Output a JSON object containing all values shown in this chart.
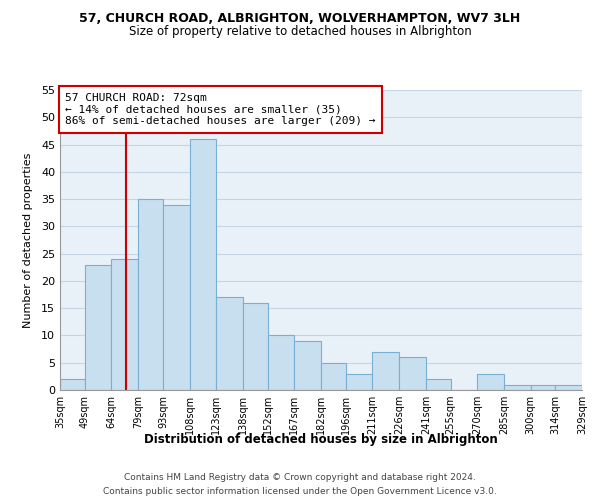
{
  "title": "57, CHURCH ROAD, ALBRIGHTON, WOLVERHAMPTON, WV7 3LH",
  "subtitle": "Size of property relative to detached houses in Albrighton",
  "xlabel": "Distribution of detached houses by size in Albrighton",
  "ylabel": "Number of detached properties",
  "footer_line1": "Contains HM Land Registry data © Crown copyright and database right 2024.",
  "footer_line2": "Contains public sector information licensed under the Open Government Licence v3.0.",
  "annotation_title": "57 CHURCH ROAD: 72sqm",
  "annotation_line1": "← 14% of detached houses are smaller (35)",
  "annotation_line2": "86% of semi-detached houses are larger (209) →",
  "bar_color": "#c8dff0",
  "bar_edge_color": "#7aafd4",
  "vline_color": "#cc0000",
  "vline_x": 72,
  "annotation_box_color": "#ffffff",
  "annotation_box_edge": "#cc0000",
  "bin_edges": [
    35,
    49,
    64,
    79,
    93,
    108,
    123,
    138,
    152,
    167,
    182,
    196,
    211,
    226,
    241,
    255,
    270,
    285,
    300,
    314,
    329
  ],
  "bar_heights": [
    2,
    23,
    24,
    35,
    34,
    46,
    17,
    16,
    10,
    9,
    5,
    3,
    7,
    6,
    2,
    0,
    3,
    1,
    1,
    1
  ],
  "ylim": [
    0,
    55
  ],
  "yticks": [
    0,
    5,
    10,
    15,
    20,
    25,
    30,
    35,
    40,
    45,
    50,
    55
  ],
  "bg_color": "#ffffff",
  "plot_bg_color": "#e8f0f8",
  "grid_color": "#c5d5e5"
}
